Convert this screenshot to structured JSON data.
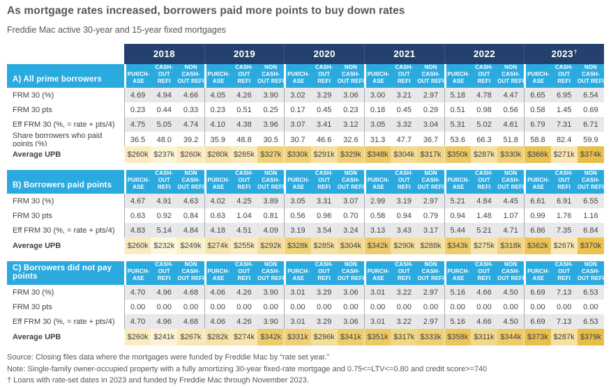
{
  "chart_data": {
    "type": "table",
    "title": "As mortgage rates increased, borrowers paid more points to buy down rates",
    "subtitle": "Freddie Mac active 30-year and 15-year fixed mortgages",
    "years": [
      {
        "label": "2018",
        "sup": ""
      },
      {
        "label": "2019",
        "sup": ""
      },
      {
        "label": "2020",
        "sup": ""
      },
      {
        "label": "2021",
        "sup": ""
      },
      {
        "label": "2022",
        "sup": ""
      },
      {
        "label": "2023",
        "sup": "†"
      }
    ],
    "subcolumns": [
      [
        "PURCH-",
        "ASE"
      ],
      [
        "CASH-",
        "OUT",
        "REFI"
      ],
      [
        "NON",
        "CASH-",
        "OUT REFI"
      ]
    ],
    "sections": [
      {
        "label": "A) All prime borrowers",
        "rows": [
          {
            "label": "FRM 30 (%)",
            "type": "plain",
            "values": [
              "4.69",
              "4.94",
              "4.66",
              "4.05",
              "4.26",
              "3.90",
              "3.02",
              "3.29",
              "3.06",
              "3.00",
              "3.21",
              "2.97",
              "5.18",
              "4.78",
              "4.47",
              "6.65",
              "6.95",
              "6.54"
            ]
          },
          {
            "label": "FRM 30 pts",
            "type": "plain",
            "values": [
              "0.23",
              "0.44",
              "0.33",
              "0.23",
              "0.51",
              "0.25",
              "0.17",
              "0.45",
              "0.23",
              "0.18",
              "0.45",
              "0.29",
              "0.51",
              "0.98",
              "0.56",
              "0.58",
              "1.45",
              "0.69"
            ]
          },
          {
            "label": "Eff FRM 30 (%, = rate + pts/4)",
            "type": "plain",
            "values": [
              "4.75",
              "5.05",
              "4.74",
              "4.10",
              "4.38",
              "3.96",
              "3.07",
              "3.41",
              "3.12",
              "3.05",
              "3.32",
              "3.04",
              "5.31",
              "5.02",
              "4.61",
              "6.79",
              "7.31",
              "6.71"
            ]
          },
          {
            "label": "Share borrowers who paid points (%)",
            "type": "plain",
            "values": [
              "36.5",
              "48.0",
              "39.2",
              "35.9",
              "48.8",
              "30.5",
              "30.7",
              "46.6",
              "32.6",
              "31.3",
              "47.7",
              "36.7",
              "53.6",
              "66.3",
              "51.8",
              "58.8",
              "82.4",
              "59.9"
            ]
          },
          {
            "label": "Average UPB",
            "type": "upb",
            "values": [
              "$260k",
              "$237k",
              "$260k",
              "$280k",
              "$265k",
              "$327k",
              "$330k",
              "$291k",
              "$329k",
              "$348k",
              "$304k",
              "$317k",
              "$350k",
              "$287k",
              "$330k",
              "$366k",
              "$271k",
              "$374k"
            ]
          }
        ]
      },
      {
        "label": "B) Borrowers paid points",
        "rows": [
          {
            "label": "FRM 30 (%)",
            "type": "plain",
            "values": [
              "4.67",
              "4.91",
              "4.63",
              "4.02",
              "4.25",
              "3.89",
              "3.05",
              "3.31",
              "3.07",
              "2.99",
              "3.19",
              "2.97",
              "5.21",
              "4.84",
              "4.45",
              "6.61",
              "6.91",
              "6.55"
            ]
          },
          {
            "label": "FRM 30 pts",
            "type": "plain",
            "values": [
              "0.63",
              "0.92",
              "0.84",
              "0.63",
              "1.04",
              "0.81",
              "0.56",
              "0.96",
              "0.70",
              "0.58",
              "0.94",
              "0.79",
              "0.94",
              "1.48",
              "1.07",
              "0.99",
              "1.76",
              "1.16"
            ]
          },
          {
            "label": "Eff FRM 30 (%, = rate + pts/4)",
            "type": "plain",
            "values": [
              "4.83",
              "5.14",
              "4.84",
              "4.18",
              "4.51",
              "4.09",
              "3.19",
              "3.54",
              "3.24",
              "3.13",
              "3.43",
              "3.17",
              "5.44",
              "5.21",
              "4.71",
              "6.86",
              "7.35",
              "6.84"
            ]
          },
          {
            "label": "Average UPB",
            "type": "upb",
            "values": [
              "$260k",
              "$232k",
              "$249k",
              "$274k",
              "$255k",
              "$292k",
              "$328k",
              "$285k",
              "$304k",
              "$342k",
              "$290k",
              "$288k",
              "$343k",
              "$275k",
              "$318k",
              "$362k",
              "$267k",
              "$370k"
            ]
          }
        ]
      },
      {
        "label": "C) Borrowers did not pay points",
        "rows": [
          {
            "label": "FRM 30 (%)",
            "type": "plain",
            "values": [
              "4.70",
              "4.96",
              "4.68",
              "4.06",
              "4.26",
              "3.90",
              "3.01",
              "3.29",
              "3.06",
              "3.01",
              "3.22",
              "2.97",
              "5.16",
              "4.66",
              "4.50",
              "6.69",
              "7.13",
              "6.53"
            ]
          },
          {
            "label": "FRM 30 pts",
            "type": "plain",
            "values": [
              "0.00",
              "0.00",
              "0.00",
              "0.00",
              "0.00",
              "0.00",
              "0.00",
              "0.00",
              "0.00",
              "0.00",
              "0.00",
              "0.00",
              "0.00",
              "0.00",
              "0.00",
              "0.00",
              "0.00",
              "0.00"
            ]
          },
          {
            "label": "Eff FRM 30 (%, = rate + pts/4)",
            "type": "plain",
            "values": [
              "4.70",
              "4.96",
              "4.68",
              "4.06",
              "4.26",
              "3.90",
              "3.01",
              "3.29",
              "3.06",
              "3.01",
              "3.22",
              "2.97",
              "5.16",
              "4.66",
              "4.50",
              "6.69",
              "7.13",
              "6.53"
            ]
          },
          {
            "label": "Average UPB",
            "type": "upb",
            "values": [
              "$260k",
              "$241k",
              "$267k",
              "$282k",
              "$274k",
              "$342k",
              "$331k",
              "$296k",
              "$341k",
              "$351k",
              "$317k",
              "$333k",
              "$358k",
              "$311k",
              "$344k",
              "$373k",
              "$287k",
              "$379k"
            ]
          }
        ]
      }
    ],
    "footnotes": [
      "Source: Closing files data where the mortgages were funded by Freddie Mac by “rate set year.”",
      "Note: Single-family owner-occupied property with a fully amortizing 30-year fixed-rate mortgage and 0.75<=LTV<=0.80 and credit score>=740",
      "† Loans with rate-set dates in 2023 and funded by Freddie Mac through November 2023."
    ],
    "colors": {
      "year_bar": "#24406c",
      "section_header": "#2baae0",
      "row_stripe": "#e8e8ea",
      "heatmap_low": "#fef7df",
      "heatmap_high": "#e8bd44",
      "text": "#414042",
      "notes_text": "#55565a"
    },
    "heatmap_range": {
      "min": 230,
      "max": 382
    }
  }
}
